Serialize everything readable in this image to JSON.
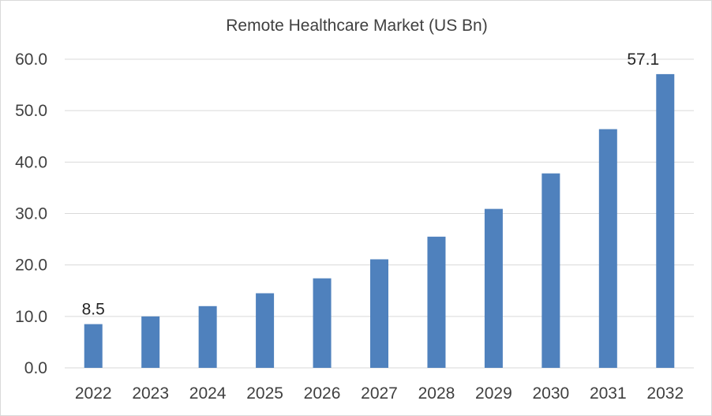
{
  "chart_data": {
    "type": "bar",
    "title": "Remote Healthcare Market (US Bn)",
    "xlabel": "",
    "ylabel": "",
    "categories": [
      "2022",
      "2023",
      "2024",
      "2025",
      "2026",
      "2027",
      "2028",
      "2029",
      "2030",
      "2031",
      "2032"
    ],
    "values": [
      8.5,
      10.0,
      12.0,
      14.5,
      17.4,
      21.1,
      25.5,
      30.9,
      37.8,
      46.4,
      57.1
    ],
    "ylim": [
      0,
      60
    ],
    "yticks": [
      "0.0",
      "10.0",
      "20.0",
      "30.0",
      "40.0",
      "50.0",
      "60.0"
    ],
    "data_labels": [
      {
        "index": 0,
        "text": "8.5"
      },
      {
        "index": 10,
        "text": "57.1"
      }
    ],
    "grid": true,
    "legend": "none",
    "bar_color": "#4f81bd",
    "grid_color": "#d9d9d9"
  }
}
